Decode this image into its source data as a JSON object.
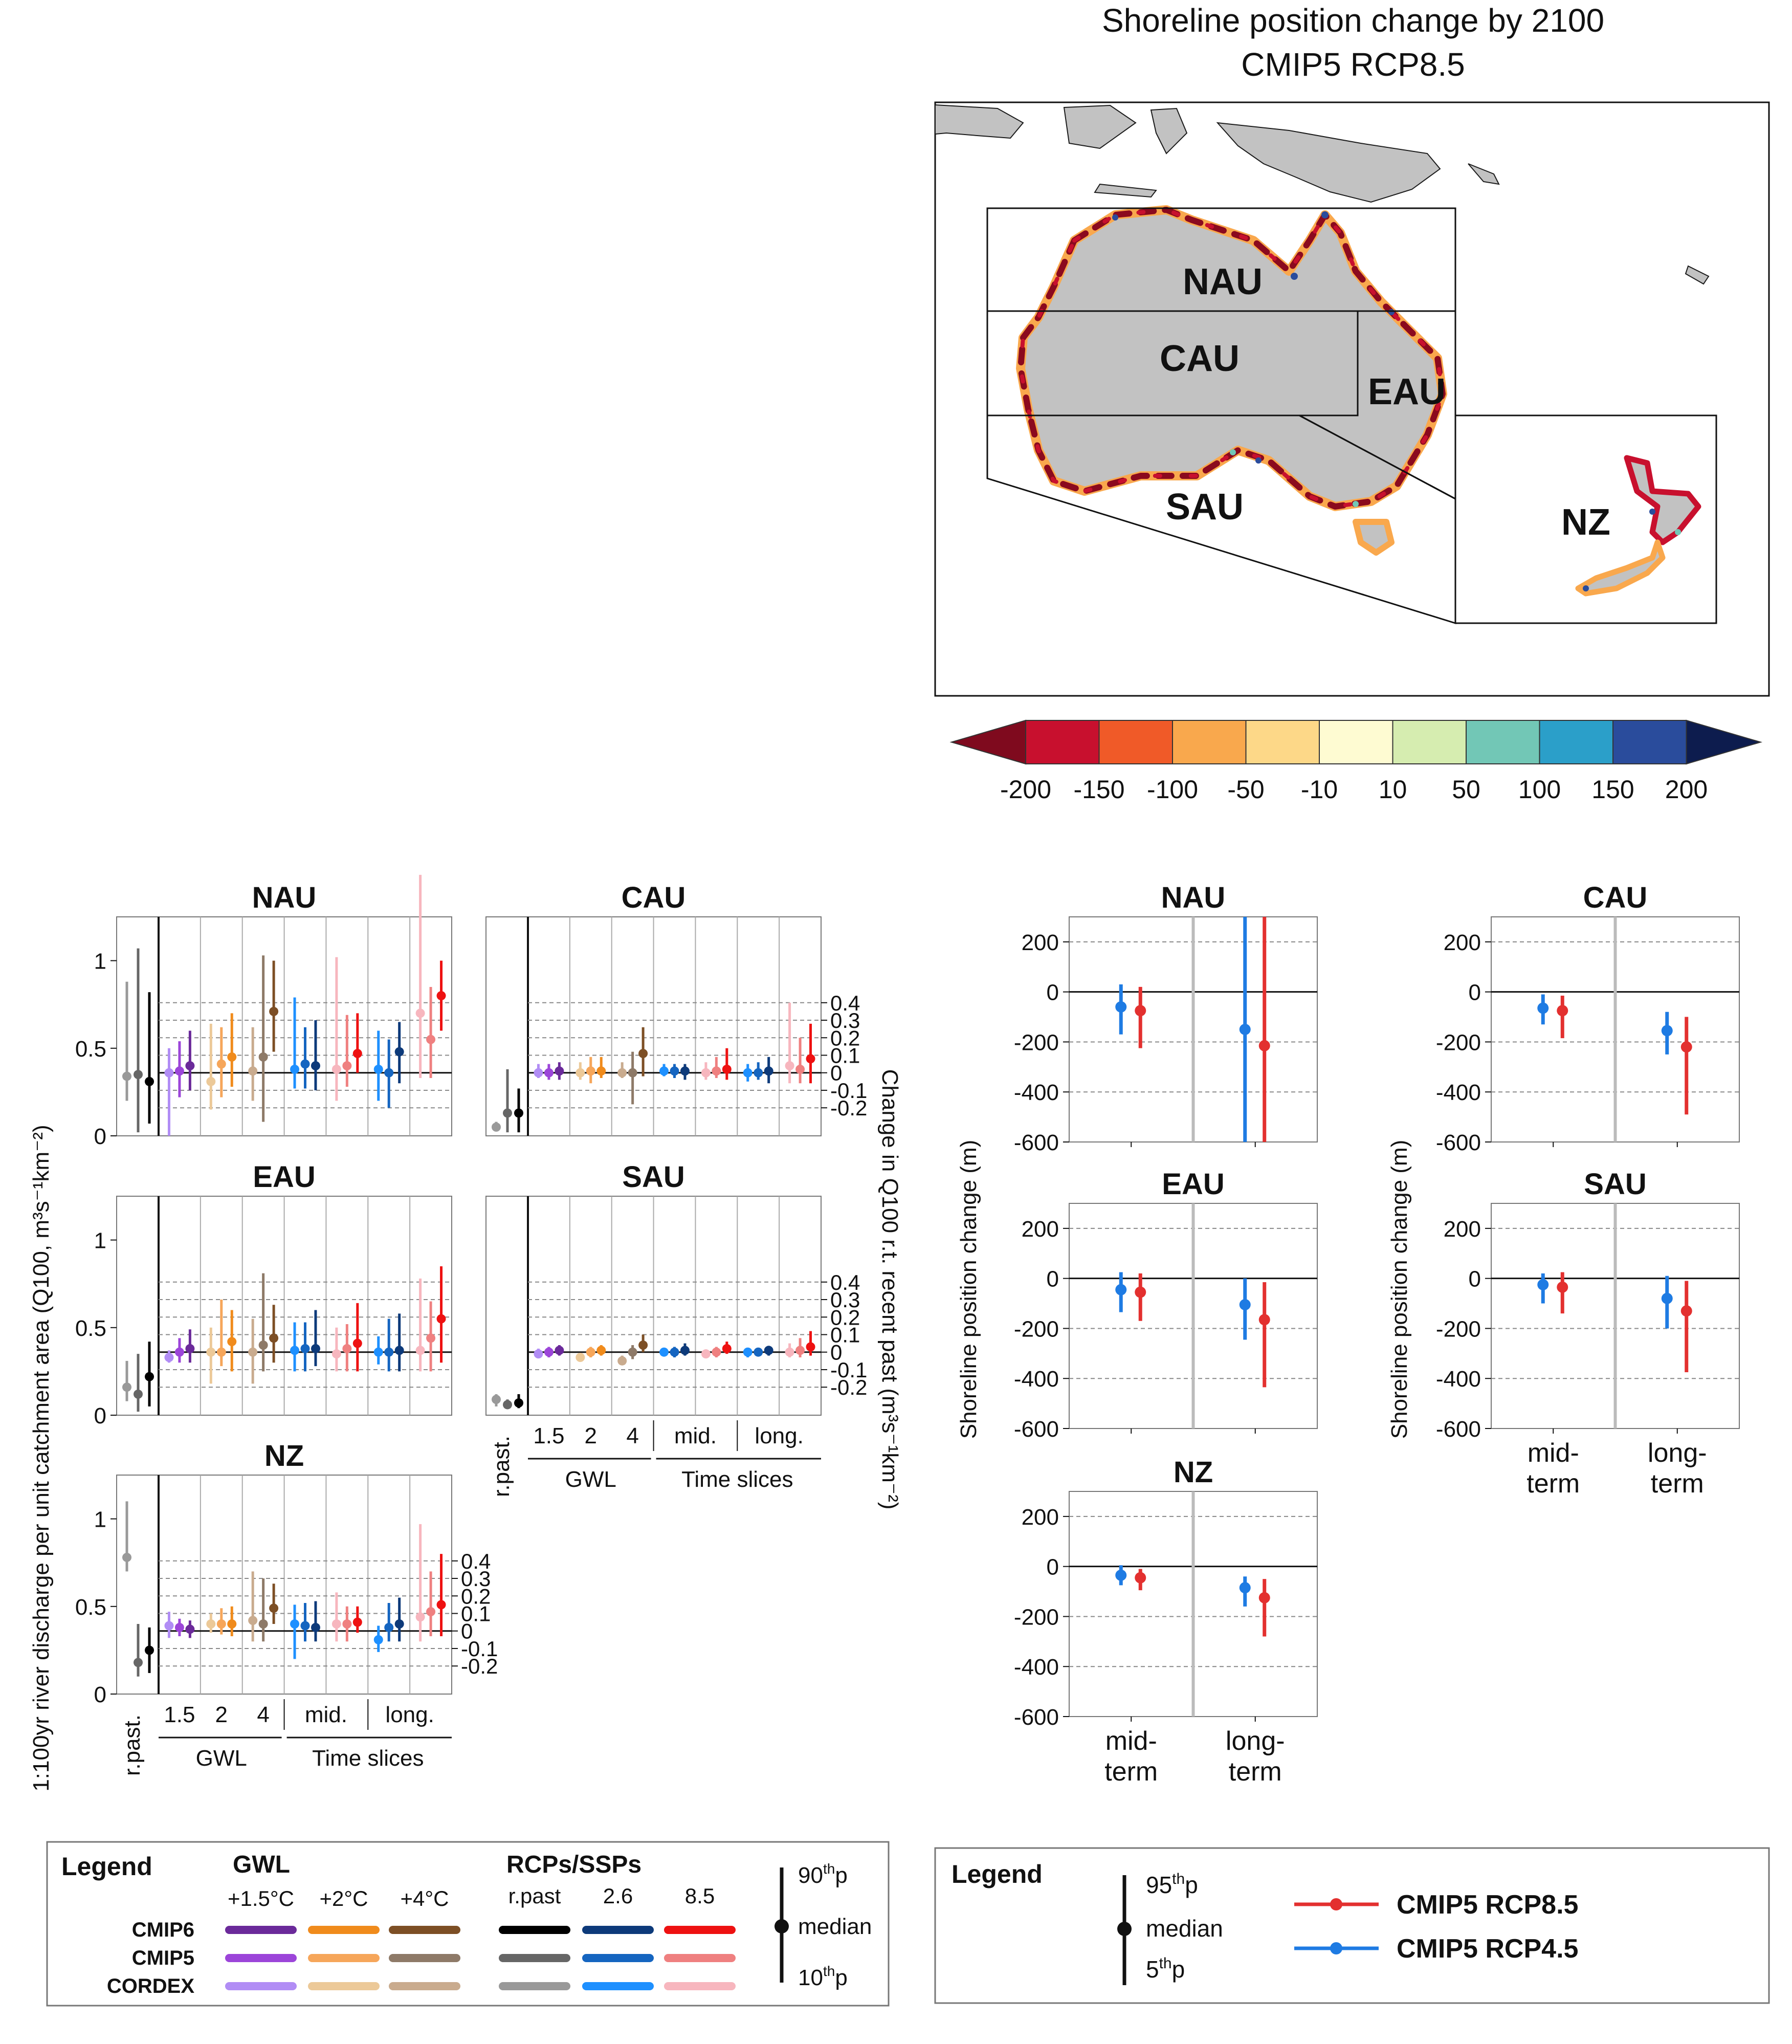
{
  "map": {
    "title_line1": "Shoreline position change by 2100",
    "title_line2": "CMIP5 RCP8.5",
    "region_labels": [
      "NAU",
      "CAU",
      "EAU",
      "SAU",
      "NZ"
    ],
    "colorbar": {
      "ticks": [
        "-200",
        "-150",
        "-100",
        "-50",
        "-10",
        "10",
        "50",
        "100",
        "150",
        "200"
      ],
      "colors": [
        "#7f0a1e",
        "#c8102e",
        "#f05a28",
        "#f9a84d",
        "#fdd888",
        "#fefbd2",
        "#d6edb0",
        "#72c7b6",
        "#2b9fc9",
        "#2a4c9c",
        "#0d1c4e"
      ]
    }
  },
  "discharge": {
    "y_left_label": "1:100yr river discharge per unit catchment area (Q100, m³s⁻¹km⁻²)",
    "y_right_label": "Change in Q100 r.t. recent past (m³s⁻¹km⁻²)",
    "left_ticks": [
      "0",
      "0.5",
      "1"
    ],
    "right_ticks": [
      "0.4",
      "0.3",
      "0.2",
      "0.1",
      "0",
      "-0.1",
      "-0.2"
    ],
    "x_labels": [
      "r.past.",
      "1.5",
      "2",
      "4",
      "mid.",
      "long."
    ],
    "group_labels": [
      "GWL",
      "Time slices"
    ],
    "colors": {
      "rpast": [
        "#999999",
        "#666666",
        "#000000"
      ],
      "g15": [
        "#b18df5",
        "#9c45d9",
        "#6b2a9a"
      ],
      "g2": [
        "#ecc998",
        "#f6a65a",
        "#f08b1c"
      ],
      "g4": [
        "#c9ab8e",
        "#8e7a68",
        "#7d4f25"
      ],
      "r26": [
        "#1e90ff",
        "#1565c0",
        "#0d3a7a"
      ],
      "r85": [
        "#f7b6be",
        "#ef8080",
        "#ee1111"
      ]
    },
    "chart_data": [
      {
        "type": "scatter",
        "title": "NAU",
        "ylim": [
          0,
          1.25
        ],
        "baseline": 0.36,
        "points": {
          "rpast": [
            [
              0.34,
              0.2,
              0.88
            ],
            [
              0.35,
              0.02,
              1.07
            ],
            [
              0.31,
              0.07,
              0.82
            ]
          ],
          "g15": [
            [
              0.36,
              0.0,
              0.5
            ],
            [
              0.37,
              0.22,
              0.54
            ],
            [
              0.4,
              0.26,
              0.6
            ]
          ],
          "g2": [
            [
              0.31,
              0.15,
              0.64
            ],
            [
              0.41,
              0.22,
              0.62
            ],
            [
              0.45,
              0.28,
              0.7
            ]
          ],
          "g4": [
            [
              0.37,
              0.2,
              0.62
            ],
            [
              0.45,
              0.08,
              1.03
            ],
            [
              0.71,
              0.48,
              1.0
            ]
          ],
          "r26": [
            [
              0.38,
              0.27,
              0.79
            ],
            [
              0.41,
              0.27,
              0.62
            ],
            [
              0.4,
              0.26,
              0.66
            ]
          ],
          "r85": [
            [
              0.38,
              0.2,
              1.02
            ],
            [
              0.4,
              0.28,
              0.69
            ],
            [
              0.47,
              0.36,
              0.7
            ]
          ],
          "r26b": [
            [
              0.38,
              0.2,
              0.6
            ],
            [
              0.36,
              0.16,
              0.55
            ],
            [
              0.48,
              0.3,
              0.65
            ]
          ],
          "r85b": [
            [
              0.7,
              0.33,
              1.49
            ],
            [
              0.55,
              0.33,
              0.85
            ],
            [
              0.8,
              0.6,
              1.0
            ]
          ]
        }
      },
      {
        "type": "scatter",
        "title": "CAU",
        "ylim": [
          0,
          1.25
        ],
        "baseline": 0.36,
        "points": {
          "rpast": [
            [
              0.05,
              0.03,
              0.08
            ],
            [
              0.13,
              0.02,
              0.38
            ],
            [
              0.13,
              0.02,
              0.27
            ]
          ],
          "g15": [
            [
              0.36,
              0.33,
              0.41
            ],
            [
              0.36,
              0.32,
              0.41
            ],
            [
              0.37,
              0.32,
              0.42
            ]
          ],
          "g2": [
            [
              0.36,
              0.32,
              0.42
            ],
            [
              0.37,
              0.3,
              0.45
            ],
            [
              0.37,
              0.33,
              0.45
            ]
          ],
          "g4": [
            [
              0.36,
              0.33,
              0.42
            ],
            [
              0.36,
              0.18,
              0.48
            ],
            [
              0.47,
              0.34,
              0.62
            ]
          ],
          "r26": [
            [
              0.37,
              0.34,
              0.41
            ],
            [
              0.37,
              0.33,
              0.41
            ],
            [
              0.37,
              0.32,
              0.41
            ]
          ],
          "r85": [
            [
              0.36,
              0.32,
              0.42
            ],
            [
              0.37,
              0.33,
              0.45
            ],
            [
              0.38,
              0.32,
              0.5
            ]
          ],
          "r26b": [
            [
              0.36,
              0.31,
              0.41
            ],
            [
              0.36,
              0.32,
              0.42
            ],
            [
              0.37,
              0.3,
              0.45
            ]
          ],
          "r85b": [
            [
              0.4,
              0.3,
              0.76
            ],
            [
              0.38,
              0.3,
              0.56
            ],
            [
              0.44,
              0.3,
              0.64
            ]
          ]
        }
      },
      {
        "type": "scatter",
        "title": "EAU",
        "ylim": [
          0,
          1.25
        ],
        "baseline": 0.36,
        "points": {
          "rpast": [
            [
              0.16,
              0.08,
              0.31
            ],
            [
              0.12,
              0.02,
              0.35
            ],
            [
              0.22,
              0.05,
              0.42
            ]
          ],
          "g15": [
            [
              0.33,
              0.3,
              0.37
            ],
            [
              0.36,
              0.3,
              0.44
            ],
            [
              0.38,
              0.3,
              0.49
            ]
          ],
          "g2": [
            [
              0.36,
              0.18,
              0.5
            ],
            [
              0.36,
              0.28,
              0.66
            ],
            [
              0.42,
              0.25,
              0.6
            ]
          ],
          "g4": [
            [
              0.36,
              0.18,
              0.55
            ],
            [
              0.4,
              0.25,
              0.81
            ],
            [
              0.44,
              0.3,
              0.63
            ]
          ],
          "r26": [
            [
              0.37,
              0.25,
              0.53
            ],
            [
              0.38,
              0.25,
              0.53
            ],
            [
              0.38,
              0.28,
              0.6
            ]
          ],
          "r85": [
            [
              0.35,
              0.25,
              0.5
            ],
            [
              0.38,
              0.25,
              0.52
            ],
            [
              0.41,
              0.25,
              0.64
            ]
          ],
          "r26b": [
            [
              0.36,
              0.29,
              0.45
            ],
            [
              0.36,
              0.25,
              0.55
            ],
            [
              0.37,
              0.25,
              0.58
            ]
          ],
          "r85b": [
            [
              0.37,
              0.25,
              0.78
            ],
            [
              0.44,
              0.25,
              0.65
            ],
            [
              0.55,
              0.3,
              0.85
            ]
          ]
        }
      },
      {
        "type": "scatter",
        "title": "SAU",
        "ylim": [
          0,
          1.25
        ],
        "baseline": 0.36,
        "points": {
          "rpast": [
            [
              0.09,
              0.05,
              0.12
            ],
            [
              0.06,
              0.04,
              0.09
            ],
            [
              0.07,
              0.04,
              0.12
            ]
          ],
          "g15": [
            [
              0.35,
              0.33,
              0.38
            ],
            [
              0.36,
              0.33,
              0.39
            ],
            [
              0.37,
              0.34,
              0.4
            ]
          ],
          "g2": [
            [
              0.33,
              0.31,
              0.35
            ],
            [
              0.36,
              0.33,
              0.39
            ],
            [
              0.37,
              0.34,
              0.4
            ]
          ],
          "g4": [
            [
              0.31,
              0.29,
              0.34
            ],
            [
              0.36,
              0.32,
              0.4
            ],
            [
              0.4,
              0.36,
              0.46
            ]
          ],
          "r26": [
            [
              0.36,
              0.34,
              0.38
            ],
            [
              0.36,
              0.33,
              0.39
            ],
            [
              0.37,
              0.34,
              0.41
            ]
          ],
          "r85": [
            [
              0.35,
              0.33,
              0.37
            ],
            [
              0.36,
              0.33,
              0.39
            ],
            [
              0.38,
              0.35,
              0.42
            ]
          ],
          "r26b": [
            [
              0.36,
              0.33,
              0.38
            ],
            [
              0.36,
              0.34,
              0.38
            ],
            [
              0.37,
              0.34,
              0.39
            ]
          ],
          "r85b": [
            [
              0.36,
              0.33,
              0.41
            ],
            [
              0.37,
              0.33,
              0.44
            ],
            [
              0.39,
              0.34,
              0.48
            ]
          ]
        }
      },
      {
        "type": "scatter",
        "title": "NZ",
        "ylim": [
          0,
          1.25
        ],
        "baseline": 0.36,
        "points": {
          "rpast": [
            [
              0.78,
              0.7,
              1.1
            ],
            [
              0.18,
              0.1,
              0.4
            ],
            [
              0.25,
              0.12,
              0.38
            ]
          ],
          "g15": [
            [
              0.39,
              0.32,
              0.47
            ],
            [
              0.38,
              0.33,
              0.43
            ],
            [
              0.37,
              0.32,
              0.42
            ]
          ],
          "g2": [
            [
              0.4,
              0.35,
              0.46
            ],
            [
              0.4,
              0.34,
              0.49
            ],
            [
              0.4,
              0.33,
              0.5
            ]
          ],
          "g4": [
            [
              0.42,
              0.3,
              0.7
            ],
            [
              0.4,
              0.3,
              0.66
            ],
            [
              0.49,
              0.4,
              0.63
            ]
          ],
          "r26": [
            [
              0.4,
              0.2,
              0.51
            ],
            [
              0.39,
              0.3,
              0.52
            ],
            [
              0.38,
              0.3,
              0.53
            ]
          ],
          "r85": [
            [
              0.4,
              0.3,
              0.58
            ],
            [
              0.4,
              0.3,
              0.5
            ],
            [
              0.41,
              0.35,
              0.5
            ]
          ],
          "r26b": [
            [
              0.31,
              0.24,
              0.39
            ],
            [
              0.38,
              0.3,
              0.52
            ],
            [
              0.4,
              0.3,
              0.55
            ]
          ],
          "r85b": [
            [
              0.44,
              0.3,
              0.97
            ],
            [
              0.47,
              0.33,
              0.7
            ],
            [
              0.51,
              0.33,
              0.8
            ]
          ]
        }
      }
    ]
  },
  "shoreline": {
    "y_label": "Shoreline position change (m)",
    "y_ticks": [
      "200",
      "0",
      "-200",
      "-400",
      "-600"
    ],
    "x_labels": [
      [
        "mid-",
        "term"
      ],
      [
        "long-",
        "term"
      ]
    ],
    "colors": {
      "rcp45": "#1e7be3",
      "rcp85": "#e3302f"
    },
    "chart_data": [
      {
        "type": "scatter",
        "title": "NAU",
        "ylim": [
          -600,
          300
        ],
        "mid": {
          "rcp45": [
            -60,
            -170,
            30
          ],
          "rcp85": [
            -75,
            -225,
            20
          ]
        },
        "long": {
          "rcp45": [
            -150,
            -600,
            300
          ],
          "rcp85": [
            -215,
            -600,
            300
          ]
        }
      },
      {
        "type": "scatter",
        "title": "CAU",
        "ylim": [
          -600,
          300
        ],
        "mid": {
          "rcp45": [
            -65,
            -130,
            -10
          ],
          "rcp85": [
            -75,
            -185,
            -15
          ]
        },
        "long": {
          "rcp45": [
            -155,
            -250,
            -80
          ],
          "rcp85": [
            -220,
            -490,
            -100
          ]
        }
      },
      {
        "type": "scatter",
        "title": "EAU",
        "ylim": [
          -600,
          300
        ],
        "mid": {
          "rcp45": [
            -45,
            -135,
            25
          ],
          "rcp85": [
            -55,
            -170,
            20
          ]
        },
        "long": {
          "rcp45": [
            -105,
            -245,
            0
          ],
          "rcp85": [
            -165,
            -435,
            -15
          ]
        }
      },
      {
        "type": "scatter",
        "title": "SAU",
        "ylim": [
          -600,
          300
        ],
        "mid": {
          "rcp45": [
            -25,
            -100,
            20
          ],
          "rcp85": [
            -35,
            -140,
            25
          ]
        },
        "long": {
          "rcp45": [
            -80,
            -200,
            10
          ],
          "rcp85": [
            -130,
            -375,
            -10
          ]
        }
      },
      {
        "type": "scatter",
        "title": "NZ",
        "ylim": [
          -600,
          300
        ],
        "mid": {
          "rcp45": [
            -35,
            -75,
            5
          ],
          "rcp85": [
            -45,
            -95,
            -10
          ]
        },
        "long": {
          "rcp45": [
            -85,
            -160,
            -40
          ],
          "rcp85": [
            -125,
            -280,
            -50
          ]
        }
      }
    ]
  },
  "legend_left": {
    "title": "Legend",
    "gwl_header": "GWL",
    "gwl_cols": [
      "+1.5°C",
      "+2°C",
      "+4°C"
    ],
    "rcp_header": "RCPs/SSPs",
    "rcp_cols": [
      "r.past",
      "2.6",
      "8.5"
    ],
    "rows": [
      "CMIP6",
      "CMIP5",
      "CORDEX"
    ],
    "p90": "90",
    "p90_sup": "th",
    "p90_suffix": "p",
    "median": "median",
    "p10": "10",
    "p10_sup": "th",
    "p10_suffix": "p"
  },
  "legend_right": {
    "title": "Legend",
    "p95": "95",
    "p95_sup": "th",
    "p95_suffix": "p",
    "median": "median",
    "p5": "5",
    "p5_sup": "th",
    "p5_suffix": "p",
    "series": [
      "CMIP5 RCP8.5",
      "CMIP5 RCP4.5"
    ]
  }
}
